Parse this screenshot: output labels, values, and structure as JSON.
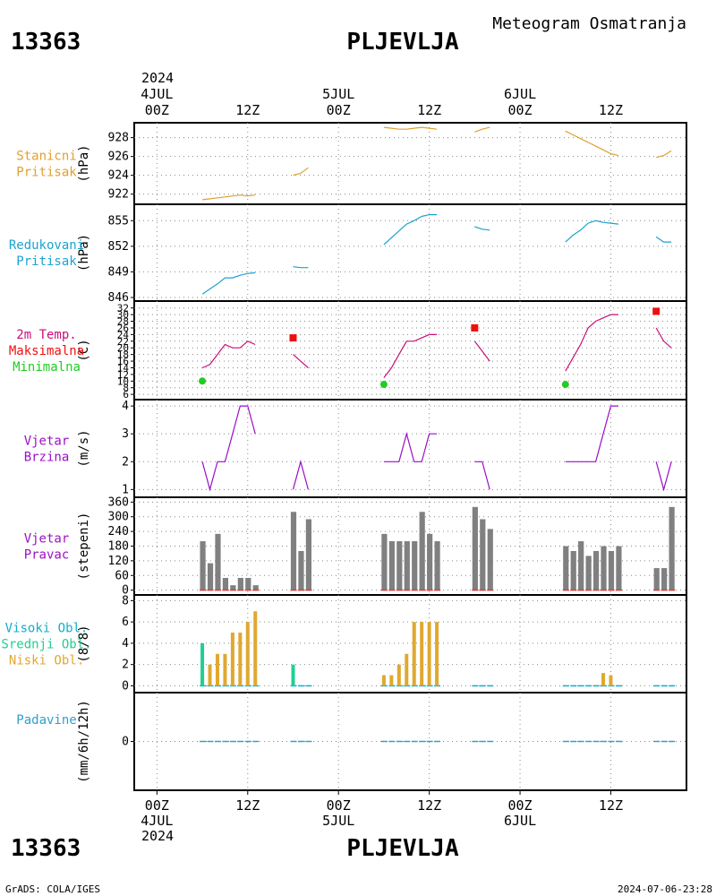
{
  "header": {
    "station_id": "13363",
    "station_name": "PLJEVLJA",
    "subtitle": "Meteogram Osmatranja"
  },
  "footer": {
    "station_id": "13363",
    "station_name": "PLJEVLJA",
    "credit": "GrADS: COLA/IGES",
    "timestamp": "2024-07-06-23:28"
  },
  "time_axis": {
    "top_year": "2024",
    "ticks": [
      {
        "hour": 0,
        "label": "00Z",
        "date": "4JUL"
      },
      {
        "hour": 12,
        "label": "12Z"
      },
      {
        "hour": 24,
        "label": "00Z",
        "date": "5JUL"
      },
      {
        "hour": 36,
        "label": "12Z"
      },
      {
        "hour": 48,
        "label": "00Z",
        "date": "6JUL"
      },
      {
        "hour": 60,
        "label": "12Z"
      }
    ],
    "bottom_year": "2024",
    "range_hours": [
      -3,
      70
    ]
  },
  "colors": {
    "pressure": "#e0a030",
    "reduced": "#1aa3d0",
    "temperature": "#c8107a",
    "tmax": "#ee1010",
    "tmin": "#22cc22",
    "wind": "#9a10c8",
    "direction_bar": "#808080",
    "direction_base": "#d04040",
    "cloud_high": "#10b0c8",
    "cloud_mid": "#20d090",
    "cloud_low": "#e0a830",
    "precip": "#30a0c8",
    "frame": "#000000",
    "grid": "#888888"
  },
  "chart_data": [
    {
      "id": "station-pressure",
      "type": "line",
      "labels": [
        "Stanicni",
        "Pritisak"
      ],
      "label_colors": [
        "pressure",
        "pressure"
      ],
      "ylabel": "(hPa)",
      "yticks": [
        922,
        924,
        926,
        928
      ],
      "ylim": [
        921.3,
        929.2
      ],
      "series": [
        {
          "color": "pressure",
          "segments": [
            [
              [
                6,
                921.4
              ],
              [
                7,
                921.5
              ],
              [
                8,
                921.6
              ],
              [
                9,
                921.7
              ],
              [
                10,
                921.8
              ],
              [
                11,
                921.9
              ],
              [
                12,
                921.8
              ],
              [
                13,
                921.9
              ]
            ],
            [
              [
                18,
                924.0
              ],
              [
                19,
                924.2
              ],
              [
                20,
                924.8
              ]
            ],
            [
              [
                30,
                929.1
              ],
              [
                31,
                929.0
              ],
              [
                32,
                928.9
              ],
              [
                33,
                928.9
              ],
              [
                34,
                929.0
              ],
              [
                35,
                929.1
              ],
              [
                36,
                929.0
              ],
              [
                37,
                928.9
              ]
            ],
            [
              [
                42,
                928.6
              ],
              [
                43,
                928.9
              ],
              [
                44,
                929.1
              ]
            ],
            [
              [
                54,
                928.7
              ],
              [
                55,
                928.3
              ],
              [
                56,
                927.9
              ],
              [
                57,
                927.5
              ],
              [
                58,
                927.1
              ],
              [
                59,
                926.7
              ],
              [
                60,
                926.3
              ],
              [
                61,
                926.1
              ]
            ],
            [
              [
                66,
                925.9
              ],
              [
                67,
                926.1
              ],
              [
                68,
                926.6
              ]
            ]
          ]
        }
      ]
    },
    {
      "id": "reduced-pressure",
      "type": "line",
      "labels": [
        "Redukovani",
        "Pritisak"
      ],
      "label_colors": [
        "reduced",
        "reduced"
      ],
      "ylabel": "(hPa)",
      "yticks": [
        846,
        849,
        852,
        855
      ],
      "ylim": [
        846,
        856.5
      ],
      "series": [
        {
          "color": "reduced",
          "segments": [
            [
              [
                6,
                846.4
              ],
              [
                7,
                847.0
              ],
              [
                8,
                847.6
              ],
              [
                9,
                848.3
              ],
              [
                10,
                848.3
              ],
              [
                11,
                848.6
              ],
              [
                12,
                848.8
              ],
              [
                13,
                848.9
              ]
            ],
            [
              [
                18,
                849.6
              ],
              [
                19,
                849.5
              ],
              [
                20,
                849.5
              ]
            ],
            [
              [
                30,
                852.2
              ],
              [
                31,
                853.0
              ],
              [
                32,
                853.8
              ],
              [
                33,
                854.6
              ],
              [
                34,
                855.0
              ],
              [
                35,
                855.5
              ],
              [
                36,
                855.7
              ],
              [
                37,
                855.7
              ]
            ],
            [
              [
                42,
                854.3
              ],
              [
                43,
                854.0
              ],
              [
                44,
                853.9
              ]
            ],
            [
              [
                54,
                852.5
              ],
              [
                55,
                853.3
              ],
              [
                56,
                853.9
              ],
              [
                57,
                854.7
              ],
              [
                58,
                855.0
              ],
              [
                59,
                854.8
              ],
              [
                60,
                854.7
              ],
              [
                61,
                854.6
              ]
            ],
            [
              [
                66,
                853.1
              ],
              [
                67,
                852.5
              ],
              [
                68,
                852.5
              ]
            ]
          ]
        }
      ]
    },
    {
      "id": "temperature",
      "type": "line",
      "labels": [
        "2m Temp.",
        "Maksimalna",
        "Minimalna"
      ],
      "label_colors": [
        "temperature",
        "tmax",
        "tmin"
      ],
      "ylabel": "(C)",
      "yticks": [
        6,
        8,
        10,
        12,
        14,
        16,
        18,
        20,
        22,
        24,
        26,
        28,
        30,
        32
      ],
      "ylim": [
        5.5,
        33
      ],
      "series": [
        {
          "color": "temperature",
          "segments": [
            [
              [
                6,
                14
              ],
              [
                7,
                15
              ],
              [
                8,
                18
              ],
              [
                9,
                21
              ],
              [
                10,
                20
              ],
              [
                11,
                20
              ],
              [
                12,
                22
              ],
              [
                13,
                21
              ]
            ],
            [
              [
                18,
                18
              ],
              [
                19,
                16
              ],
              [
                20,
                14
              ]
            ],
            [
              [
                30,
                11
              ],
              [
                31,
                14
              ],
              [
                32,
                18
              ],
              [
                33,
                22
              ],
              [
                34,
                22
              ],
              [
                35,
                23
              ],
              [
                36,
                24
              ],
              [
                37,
                24
              ]
            ],
            [
              [
                42,
                22
              ],
              [
                43,
                19
              ],
              [
                44,
                16
              ]
            ],
            [
              [
                54,
                13
              ],
              [
                55,
                17
              ],
              [
                56,
                21
              ],
              [
                57,
                26
              ],
              [
                58,
                28
              ],
              [
                59,
                29
              ],
              [
                60,
                30
              ],
              [
                61,
                30
              ]
            ],
            [
              [
                66,
                26
              ],
              [
                67,
                22
              ],
              [
                68,
                20
              ]
            ]
          ]
        }
      ],
      "max_markers": [
        [
          18,
          23
        ],
        [
          42,
          26
        ],
        [
          66,
          31
        ]
      ],
      "min_markers": [
        [
          6,
          10
        ],
        [
          30,
          9
        ],
        [
          54,
          9
        ]
      ]
    },
    {
      "id": "wind-speed",
      "type": "line",
      "labels": [
        "Vjetar",
        "Brzina"
      ],
      "label_colors": [
        "wind",
        "wind"
      ],
      "ylabel": "(m/s)",
      "yticks": [
        1,
        2,
        3,
        4
      ],
      "ylim": [
        0.85,
        4.1
      ],
      "series": [
        {
          "color": "wind",
          "segments": [
            [
              [
                6,
                2
              ],
              [
                7,
                1
              ],
              [
                8,
                2
              ],
              [
                9,
                2
              ],
              [
                10,
                3
              ],
              [
                11,
                4
              ],
              [
                12,
                4
              ],
              [
                13,
                3
              ]
            ],
            [
              [
                18,
                1
              ],
              [
                19,
                2
              ],
              [
                20,
                1
              ]
            ],
            [
              [
                30,
                2
              ],
              [
                31,
                2
              ],
              [
                32,
                2
              ],
              [
                33,
                3
              ],
              [
                34,
                2
              ],
              [
                35,
                2
              ],
              [
                36,
                3
              ],
              [
                37,
                3
              ]
            ],
            [
              [
                42,
                2
              ],
              [
                43,
                2
              ],
              [
                44,
                1
              ]
            ],
            [
              [
                54,
                2
              ],
              [
                55,
                2
              ],
              [
                56,
                2
              ],
              [
                57,
                2
              ],
              [
                58,
                2
              ],
              [
                59,
                3
              ],
              [
                60,
                4
              ],
              [
                61,
                4
              ]
            ],
            [
              [
                66,
                2
              ],
              [
                67,
                1
              ],
              [
                68,
                2
              ]
            ]
          ]
        }
      ]
    },
    {
      "id": "wind-direction",
      "type": "bar",
      "labels": [
        "Vjetar",
        "Pravac"
      ],
      "label_colors": [
        "wind",
        "wind"
      ],
      "ylabel": "(stepeni)",
      "yticks": [
        0,
        60,
        120,
        180,
        240,
        300,
        360
      ],
      "ylim": [
        -5,
        365
      ],
      "x": [
        6,
        7,
        8,
        9,
        10,
        11,
        12,
        13,
        18,
        19,
        20,
        30,
        31,
        32,
        33,
        34,
        35,
        36,
        37,
        42,
        43,
        44,
        54,
        55,
        56,
        57,
        58,
        59,
        60,
        61,
        66,
        67,
        68
      ],
      "values": [
        200,
        110,
        230,
        50,
        20,
        50,
        50,
        20,
        320,
        160,
        290,
        230,
        200,
        200,
        200,
        200,
        320,
        230,
        200,
        340,
        290,
        250,
        180,
        160,
        200,
        140,
        160,
        180,
        160,
        180,
        90,
        90,
        340
      ]
    },
    {
      "id": "clouds",
      "type": "bar",
      "labels": [
        "Visoki Obl.",
        "Srednji Obl.",
        "Niski Obl."
      ],
      "label_colors": [
        "cloud_high",
        "cloud_mid",
        "cloud_low"
      ],
      "ylabel": "(8/8)",
      "yticks": [
        0,
        2,
        4,
        6,
        8
      ],
      "ylim": [
        -0.3,
        8.2
      ],
      "series": [
        {
          "name": "Niski Obl.",
          "color": "cloud_low",
          "x": [
            6,
            7,
            8,
            9,
            10,
            11,
            12,
            13,
            18,
            30,
            31,
            32,
            33,
            34,
            35,
            36,
            37,
            59,
            60
          ],
          "values": [
            1,
            2,
            3,
            3,
            5,
            5,
            6,
            7,
            1,
            1,
            1,
            2,
            3,
            6,
            6,
            6,
            6,
            1.2,
            1
          ]
        },
        {
          "name": "Srednji Obl.",
          "color": "cloud_mid",
          "x": [
            6,
            18
          ],
          "values": [
            4,
            2
          ]
        }
      ],
      "zero_x": [
        6,
        7,
        8,
        9,
        10,
        11,
        12,
        13,
        18,
        19,
        20,
        30,
        31,
        32,
        33,
        34,
        35,
        36,
        37,
        42,
        43,
        44,
        54,
        55,
        56,
        57,
        58,
        59,
        60,
        61,
        66,
        67,
        68
      ]
    },
    {
      "id": "precipitation",
      "type": "bar",
      "labels": [
        "Padavine"
      ],
      "label_colors": [
        "precip"
      ],
      "ylabel": "(mm/6h/12h)",
      "yticks": [
        0
      ],
      "ylim": [
        -1,
        1
      ],
      "x": [
        6,
        7,
        8,
        9,
        10,
        11,
        12,
        13,
        18,
        19,
        20,
        30,
        31,
        32,
        33,
        34,
        35,
        36,
        37,
        42,
        43,
        44,
        54,
        55,
        56,
        57,
        58,
        59,
        60,
        61,
        66,
        67,
        68
      ],
      "values": [
        0,
        0,
        0,
        0,
        0,
        0,
        0,
        0,
        0,
        0,
        0,
        0,
        0,
        0,
        0,
        0,
        0,
        0,
        0,
        0,
        0,
        0,
        0,
        0,
        0,
        0,
        0,
        0,
        0,
        0,
        0,
        0,
        0
      ]
    }
  ]
}
